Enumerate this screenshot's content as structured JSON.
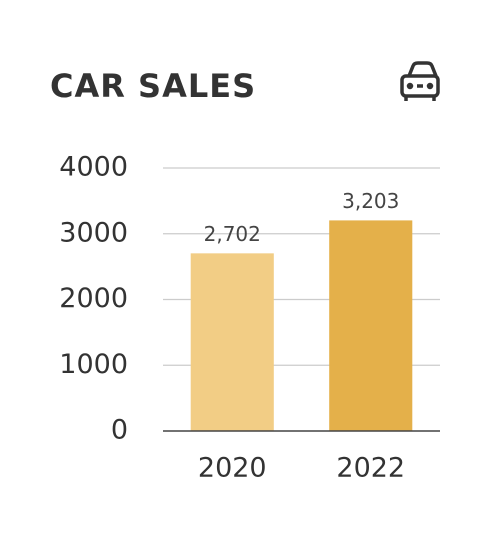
{
  "chart_data": {
    "type": "bar",
    "title": "CAR SALES",
    "categories": [
      "2020",
      "2022"
    ],
    "values": [
      2702,
      3203
    ],
    "value_labels": [
      "2,702",
      "3,203"
    ],
    "colors": [
      "#f2cd85",
      "#e4b04a"
    ],
    "ylim": [
      0,
      4000
    ],
    "yticks": [
      0,
      1000,
      2000,
      3000,
      4000
    ],
    "grid": true
  }
}
